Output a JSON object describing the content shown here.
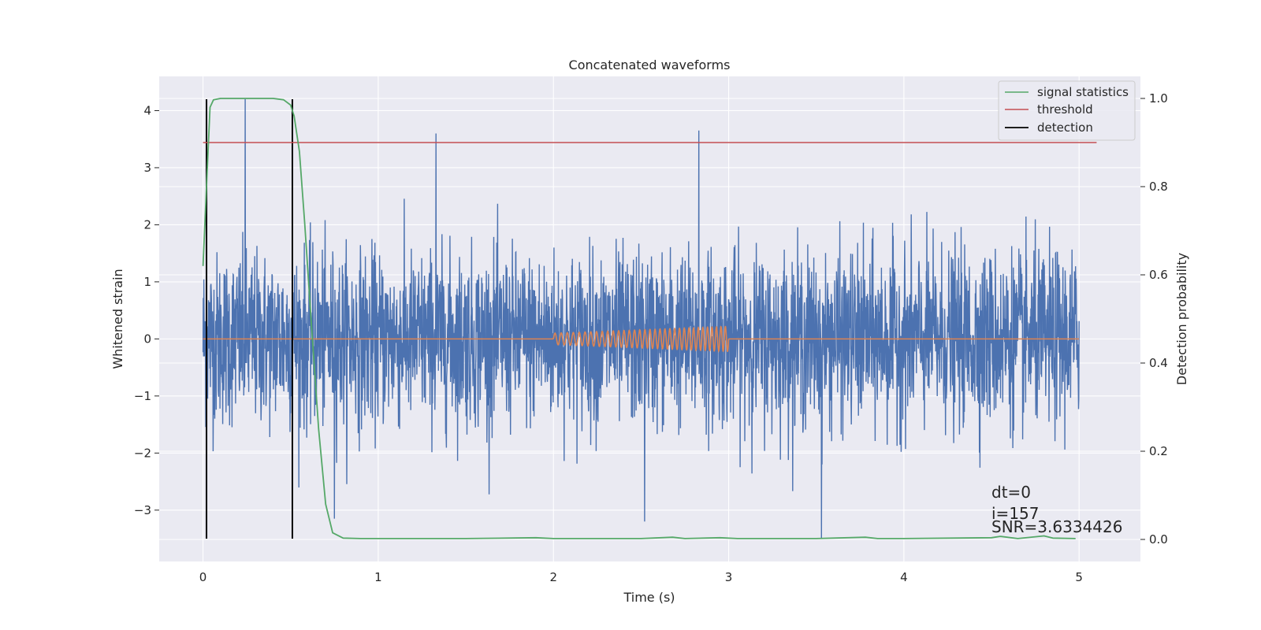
{
  "chart_data": {
    "type": "line",
    "title": "Concatenated waveforms",
    "xlabel": "Time (s)",
    "ylabel": "Whitened strain",
    "y2label": "Detection probability",
    "xlim": [
      -0.25,
      5.35
    ],
    "ylim": [
      -3.9,
      4.6
    ],
    "y2lim": [
      -0.05,
      1.05
    ],
    "x_ticks": [
      0,
      1,
      2,
      3,
      4,
      5
    ],
    "y_ticks": [
      -3,
      -2,
      -1,
      0,
      1,
      2,
      3,
      4
    ],
    "y2_ticks": [
      0.0,
      0.2,
      0.4,
      0.6,
      0.8,
      1.0
    ],
    "x_tick_labels": [
      "0",
      "1",
      "2",
      "3",
      "4",
      "5"
    ],
    "y_tick_labels": [
      "−3",
      "−2",
      "−1",
      "0",
      "1",
      "2",
      "3",
      "4"
    ],
    "y2_tick_labels": [
      "0.0",
      "0.2",
      "0.4",
      "0.6",
      "0.8",
      "1.0"
    ],
    "grid": true,
    "legend_position": "top-right",
    "colors": {
      "strain": "#4c72b0",
      "template": "#dd8452",
      "signal_statistics": "#55a868",
      "threshold": "#c44e52",
      "detection": "#000000",
      "background": "#eaeaf2",
      "grid": "#ffffff"
    },
    "series": [
      {
        "name": "signal statistics",
        "axis": "right",
        "x": [
          0.0,
          0.02,
          0.04,
          0.06,
          0.1,
          0.2,
          0.3,
          0.4,
          0.46,
          0.5,
          0.52,
          0.55,
          0.58,
          0.62,
          0.66,
          0.7,
          0.74,
          0.8,
          0.9,
          1.0,
          1.5,
          1.9,
          2.0,
          2.5,
          2.68,
          2.75,
          2.95,
          3.05,
          3.5,
          3.78,
          3.85,
          4.0,
          4.5,
          4.55,
          4.65,
          4.8,
          4.85,
          4.98
        ],
        "y": [
          0.62,
          0.8,
          0.98,
          0.997,
          1.0,
          1.0,
          1.0,
          1.0,
          0.997,
          0.985,
          0.96,
          0.88,
          0.72,
          0.48,
          0.25,
          0.08,
          0.015,
          0.003,
          0.002,
          0.002,
          0.002,
          0.004,
          0.002,
          0.002,
          0.005,
          0.002,
          0.004,
          0.002,
          0.002,
          0.005,
          0.002,
          0.002,
          0.004,
          0.007,
          0.002,
          0.008,
          0.003,
          0.002
        ]
      },
      {
        "name": "threshold",
        "axis": "right",
        "x": [
          0.0,
          5.1
        ],
        "y": [
          0.9,
          0.9
        ]
      },
      {
        "name": "detection",
        "axis": "left",
        "x": [
          0.02,
          0.51
        ],
        "y_range": [
          -3.5,
          4.2
        ]
      }
    ],
    "strain_noise": {
      "x_range": [
        0.0,
        5.0
      ],
      "typical_envelope": [
        -2.0,
        2.3
      ],
      "peaks": [
        {
          "x": 0.24,
          "y": 4.2
        },
        {
          "x": 1.33,
          "y": 3.6
        },
        {
          "x": 2.83,
          "y": 3.65
        },
        {
          "x": 3.53,
          "y": -3.5
        },
        {
          "x": 2.52,
          "y": -3.2
        },
        {
          "x": 0.75,
          "y": -3.15
        }
      ]
    },
    "injected_chirp": {
      "x_range": [
        2.0,
        3.0
      ],
      "amplitude_range": [
        0.1,
        0.22
      ]
    },
    "annotations": [
      "dt=0",
      "i=157",
      "SNR=3.6334426"
    ]
  }
}
